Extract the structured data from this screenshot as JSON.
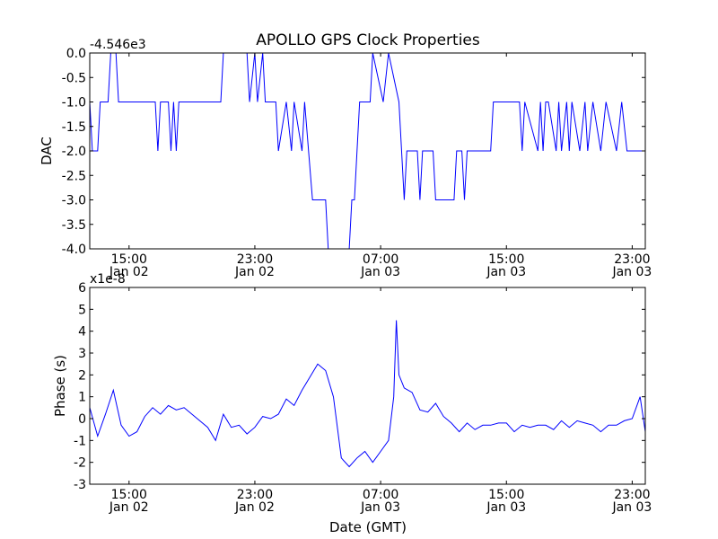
{
  "title": "APOLLO GPS Clock Properties",
  "xlabel": "Date (GMT)",
  "x_ticks": [
    {
      "time": "15:00",
      "date": "Jan 02"
    },
    {
      "time": "23:00",
      "date": "Jan 02"
    },
    {
      "time": "07:00",
      "date": "Jan 03"
    },
    {
      "time": "15:00",
      "date": "Jan 03"
    },
    {
      "time": "23:00",
      "date": "Jan 03"
    }
  ],
  "line_color": "#0000ff",
  "chart_data": [
    {
      "type": "line",
      "name": "DAC",
      "ylabel": "DAC",
      "offset_label": "-4.546e3",
      "xlim": [
        "2009-01-02 12:30",
        "2009-01-03 23:50"
      ],
      "ylim": [
        -4.0,
        0.0
      ],
      "ytick_labels": [
        "0.0",
        "-0.5",
        "-1.0",
        "-1.5",
        "-2.0",
        "-2.5",
        "-3.0",
        "-3.5",
        "-4.0"
      ],
      "ytick_values": [
        0,
        -0.5,
        -1,
        -1.5,
        -2,
        -2.5,
        -3,
        -3.5,
        -4
      ],
      "grid": false,
      "series": [
        {
          "x": [
            "2009-01-02 12:30",
            "2009-01-02 12:40",
            "2009-01-02 13:00",
            "2009-01-02 13:10",
            "2009-01-02 13:40",
            "2009-01-02 13:50",
            "2009-01-02 14:10",
            "2009-01-02 14:20",
            "2009-01-02 14:30",
            "2009-01-02 16:40",
            "2009-01-02 16:50",
            "2009-01-02 17:00",
            "2009-01-02 17:30",
            "2009-01-02 17:40",
            "2009-01-02 17:50",
            "2009-01-02 18:00",
            "2009-01-02 18:10",
            "2009-01-02 18:20",
            "2009-01-02 20:50",
            "2009-01-02 21:00",
            "2009-01-02 22:30",
            "2009-01-02 22:40",
            "2009-01-02 23:00",
            "2009-01-02 23:10",
            "2009-01-02 23:30",
            "2009-01-02 23:40",
            "2009-01-03 00:20",
            "2009-01-03 00:30",
            "2009-01-03 01:00",
            "2009-01-03 01:20",
            "2009-01-03 01:30",
            "2009-01-03 02:00",
            "2009-01-03 02:10",
            "2009-01-03 02:40",
            "2009-01-03 03:30",
            "2009-01-03 03:40",
            "2009-01-03 05:00",
            "2009-01-03 05:10",
            "2009-01-03 05:20",
            "2009-01-03 05:30",
            "2009-01-03 05:40",
            "2009-01-03 06:20",
            "2009-01-03 06:30",
            "2009-01-03 07:10",
            "2009-01-03 07:30",
            "2009-01-03 08:10",
            "2009-01-03 08:30",
            "2009-01-03 08:40",
            "2009-01-03 09:20",
            "2009-01-03 09:30",
            "2009-01-03 09:40",
            "2009-01-03 10:20",
            "2009-01-03 10:30",
            "2009-01-03 11:40",
            "2009-01-03 11:50",
            "2009-01-03 12:10",
            "2009-01-03 12:20",
            "2009-01-03 12:30",
            "2009-01-03 14:00",
            "2009-01-03 14:10",
            "2009-01-03 15:50",
            "2009-01-03 16:00",
            "2009-01-03 16:10",
            "2009-01-03 17:00",
            "2009-01-03 17:10",
            "2009-01-03 17:20",
            "2009-01-03 17:30",
            "2009-01-03 17:40",
            "2009-01-03 18:10",
            "2009-01-03 18:20",
            "2009-01-03 18:30",
            "2009-01-03 18:50",
            "2009-01-03 19:00",
            "2009-01-03 19:10",
            "2009-01-03 19:40",
            "2009-01-03 20:00",
            "2009-01-03 20:10",
            "2009-01-03 20:30",
            "2009-01-03 21:00",
            "2009-01-03 21:20",
            "2009-01-03 22:00",
            "2009-01-03 22:20",
            "2009-01-03 22:40",
            "2009-01-03 23:00",
            "2009-01-03 23:50"
          ],
          "y": [
            -1,
            -2,
            -2,
            -1,
            -1,
            0,
            0,
            -1,
            -1,
            -1,
            -2,
            -1,
            -1,
            -2,
            -1,
            -2,
            -1,
            -1,
            -1,
            0,
            0,
            -1,
            0,
            -1,
            0,
            -1,
            -1,
            -2,
            -1,
            -2,
            -1,
            -2,
            -1,
            -3,
            -3,
            -4,
            -4,
            -3,
            -3,
            -2,
            -1,
            -1,
            0,
            -1,
            0,
            -1,
            -3,
            -2,
            -2,
            -3,
            -2,
            -2,
            -3,
            -3,
            -2,
            -2,
            -3,
            -2,
            -2,
            -1,
            -1,
            -2,
            -1,
            -2,
            -1,
            -2,
            -1,
            -1,
            -2,
            -1,
            -2,
            -1,
            -2,
            -1,
            -2,
            -1,
            -2,
            -1,
            -2,
            -1,
            -2,
            -1,
            -2,
            -2,
            -2
          ]
        }
      ]
    },
    {
      "type": "line",
      "name": "Phase",
      "ylabel": "Phase (s)",
      "offset_label": "x1e-8",
      "xlim": [
        "2009-01-02 12:30",
        "2009-01-03 23:50"
      ],
      "ylim": [
        -3,
        6
      ],
      "ytick_labels": [
        "6",
        "5",
        "4",
        "3",
        "2",
        "1",
        "0",
        "-1",
        "-2",
        "-3"
      ],
      "ytick_values": [
        6,
        5,
        4,
        3,
        2,
        1,
        0,
        -1,
        -2,
        -3
      ],
      "grid": false,
      "series": [
        {
          "x": [
            "2009-01-02 12:30",
            "2009-01-02 13:00",
            "2009-01-02 13:30",
            "2009-01-02 14:00",
            "2009-01-02 14:30",
            "2009-01-02 15:00",
            "2009-01-02 15:30",
            "2009-01-02 16:00",
            "2009-01-02 16:30",
            "2009-01-02 17:00",
            "2009-01-02 17:30",
            "2009-01-02 18:00",
            "2009-01-02 18:30",
            "2009-01-02 19:00",
            "2009-01-02 19:30",
            "2009-01-02 20:00",
            "2009-01-02 20:30",
            "2009-01-02 21:00",
            "2009-01-02 21:30",
            "2009-01-02 22:00",
            "2009-01-02 22:30",
            "2009-01-02 23:00",
            "2009-01-02 23:30",
            "2009-01-03 00:00",
            "2009-01-03 00:30",
            "2009-01-03 01:00",
            "2009-01-03 01:30",
            "2009-01-03 02:00",
            "2009-01-03 02:30",
            "2009-01-03 03:00",
            "2009-01-03 03:30",
            "2009-01-03 04:00",
            "2009-01-03 04:30",
            "2009-01-03 05:00",
            "2009-01-03 05:30",
            "2009-01-03 06:00",
            "2009-01-03 06:30",
            "2009-01-03 07:00",
            "2009-01-03 07:30",
            "2009-01-03 07:50",
            "2009-01-03 08:00",
            "2009-01-03 08:10",
            "2009-01-03 08:30",
            "2009-01-03 09:00",
            "2009-01-03 09:30",
            "2009-01-03 10:00",
            "2009-01-03 10:30",
            "2009-01-03 11:00",
            "2009-01-03 11:30",
            "2009-01-03 12:00",
            "2009-01-03 12:30",
            "2009-01-03 13:00",
            "2009-01-03 13:30",
            "2009-01-03 14:00",
            "2009-01-03 14:30",
            "2009-01-03 15:00",
            "2009-01-03 15:30",
            "2009-01-03 16:00",
            "2009-01-03 16:30",
            "2009-01-03 17:00",
            "2009-01-03 17:30",
            "2009-01-03 18:00",
            "2009-01-03 18:30",
            "2009-01-03 19:00",
            "2009-01-03 19:30",
            "2009-01-03 20:00",
            "2009-01-03 20:30",
            "2009-01-03 21:00",
            "2009-01-03 21:30",
            "2009-01-03 22:00",
            "2009-01-03 22:30",
            "2009-01-03 23:00",
            "2009-01-03 23:30",
            "2009-01-03 23:50"
          ],
          "y": [
            0.5,
            -0.8,
            0.2,
            1.3,
            -0.3,
            -0.8,
            -0.6,
            0.1,
            0.5,
            0.2,
            0.6,
            0.4,
            0.5,
            0.2,
            -0.1,
            -0.4,
            -1.0,
            0.2,
            -0.4,
            -0.3,
            -0.7,
            -0.4,
            0.1,
            0.0,
            0.2,
            0.9,
            0.6,
            1.3,
            1.9,
            2.5,
            2.2,
            1.0,
            -1.8,
            -2.2,
            -1.8,
            -1.5,
            -2.0,
            -1.5,
            -1.0,
            1.0,
            4.5,
            2.0,
            1.4,
            1.2,
            0.4,
            0.3,
            0.7,
            0.1,
            -0.2,
            -0.6,
            -0.2,
            -0.5,
            -0.3,
            -0.3,
            -0.2,
            -0.2,
            -0.6,
            -0.3,
            -0.4,
            -0.3,
            -0.3,
            -0.5,
            -0.1,
            -0.4,
            -0.1,
            -0.2,
            -0.3,
            -0.6,
            -0.3,
            -0.3,
            -0.1,
            0.0,
            1.0,
            -0.6
          ]
        }
      ]
    }
  ]
}
